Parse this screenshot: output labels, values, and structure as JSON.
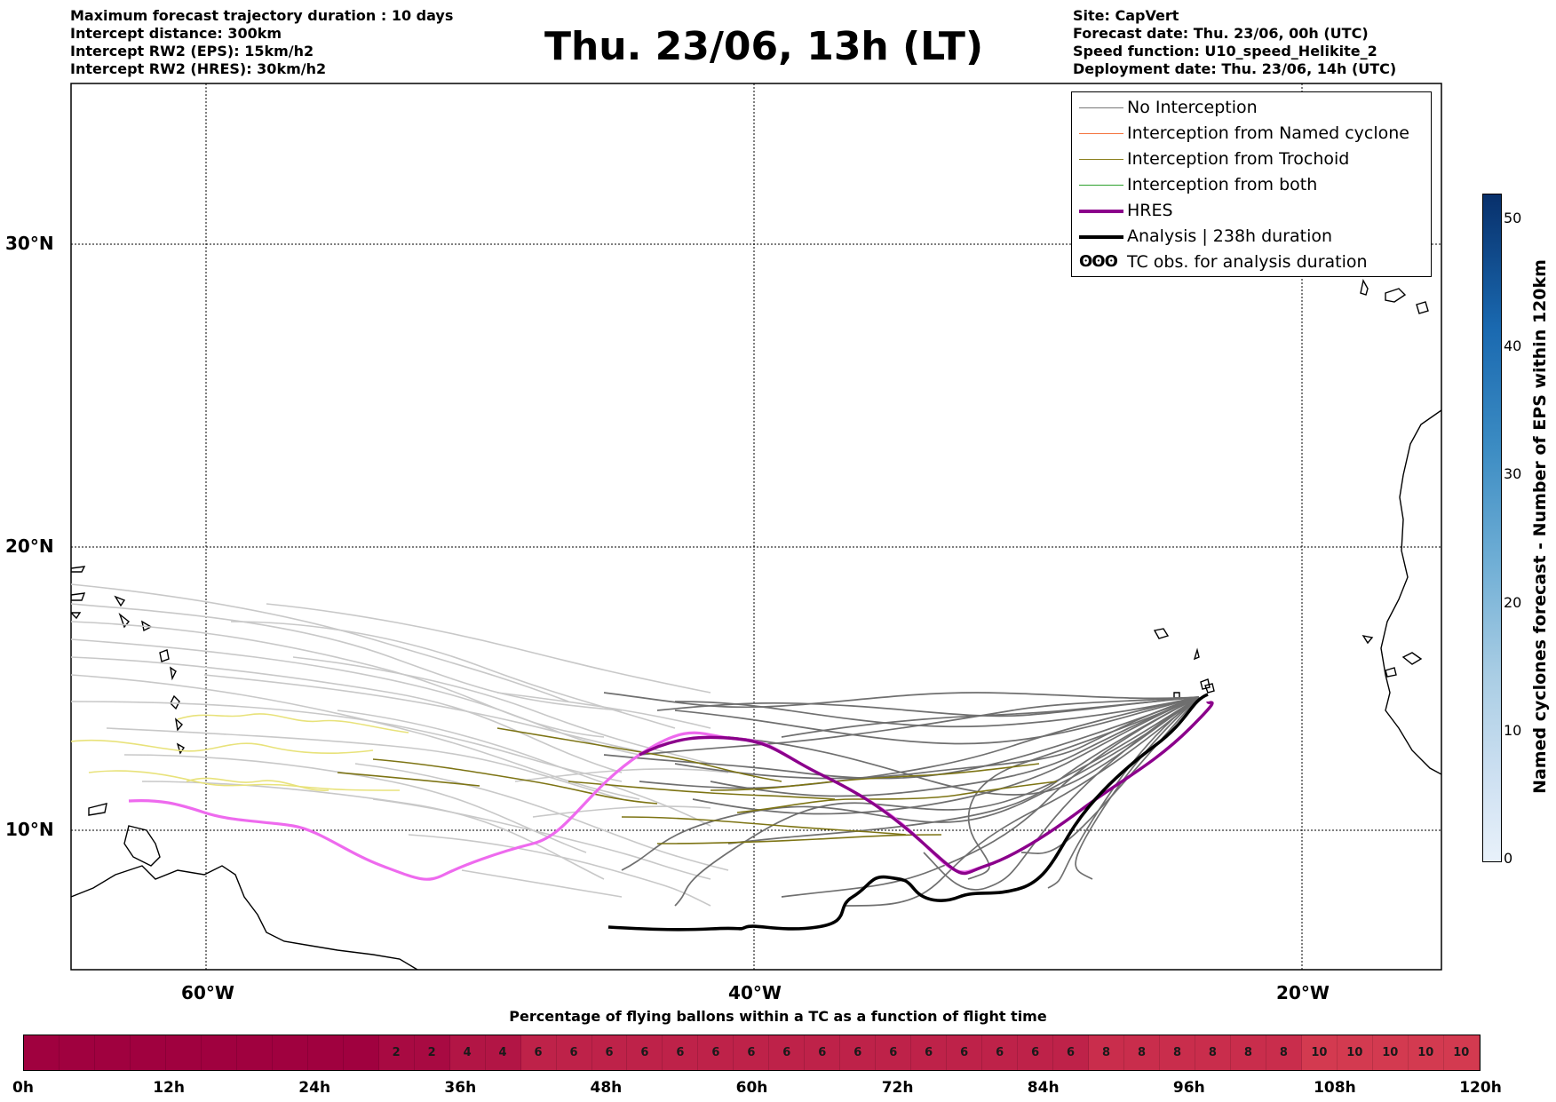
{
  "header": {
    "left_lines": [
      "Maximum forecast trajectory duration : 10 days",
      "Intercept distance: 300km",
      "Intercept RW2 (EPS):  15km/h2",
      "Intercept RW2 (HRES): 30km/h2"
    ],
    "right_lines": [
      "Site: CapVert",
      "Forecast date: Thu. 23/06, 00h (UTC)",
      "Speed function: U10_speed_Helikite_2",
      "Deployment date: Thu. 23/06, 14h (UTC)"
    ],
    "title": "Thu. 23/06, 13h (LT)"
  },
  "map": {
    "lon_labels": [
      "60°W",
      "40°W",
      "20°W"
    ],
    "lat_labels": [
      "30°N",
      "20°N",
      "10°N"
    ],
    "lon_range": [
      -65,
      -15
    ],
    "lat_range": [
      5.4,
      34.6
    ],
    "gridlines": "dotted"
  },
  "legend": {
    "items": [
      {
        "label": "No Interception",
        "color": "#777777",
        "style": "thin-line"
      },
      {
        "label": "Interception from Named cyclone",
        "color": "#f4733d",
        "style": "thin-line"
      },
      {
        "label": "Interception from Trochoid",
        "color": "#8a7f1c",
        "style": "thin-line"
      },
      {
        "label": "Interception from both",
        "color": "#2ca02c",
        "style": "thin-line"
      },
      {
        "label": "HRES",
        "color": "#8b008b",
        "style": "thick-line"
      },
      {
        "label": "Analysis | 238h duration",
        "color": "#000000",
        "style": "thick-line"
      },
      {
        "label": "TC obs. for analysis duration",
        "color": "#000000",
        "style": "cyclone-symbols",
        "symbol": "ʘʘʘ"
      }
    ]
  },
  "colorbar": {
    "label": "Named cyclones forecast - Number of EPS within 120km",
    "ticks": [
      "0",
      "10",
      "20",
      "30",
      "40",
      "50"
    ],
    "max": 52,
    "colors": [
      "#e8f1fa",
      "#08306b"
    ]
  },
  "timeline": {
    "title": "Percentage of flying ballons within a TC as a function of flight time",
    "tick_labels": [
      "0h",
      "12h",
      "24h",
      "36h",
      "48h",
      "60h",
      "72h",
      "84h",
      "96h",
      "108h",
      "120h"
    ],
    "segment_values": [
      "",
      "",
      "",
      "",
      "",
      "",
      "",
      "",
      "",
      "",
      "2",
      "2",
      "4",
      "4",
      "6",
      "6",
      "6",
      "6",
      "6",
      "6",
      "6",
      "6",
      "6",
      "6",
      "6",
      "6",
      "6",
      "6",
      "6",
      "6",
      "8",
      "8",
      "8",
      "8",
      "8",
      "8",
      "10",
      "10",
      "10",
      "10",
      "10"
    ],
    "colors": {
      "0": "#a0013f",
      "2": "#a80a42",
      "4": "#b21545",
      "6": "#be2249",
      "8": "#c92d4c",
      "10": "#d33a50"
    }
  }
}
